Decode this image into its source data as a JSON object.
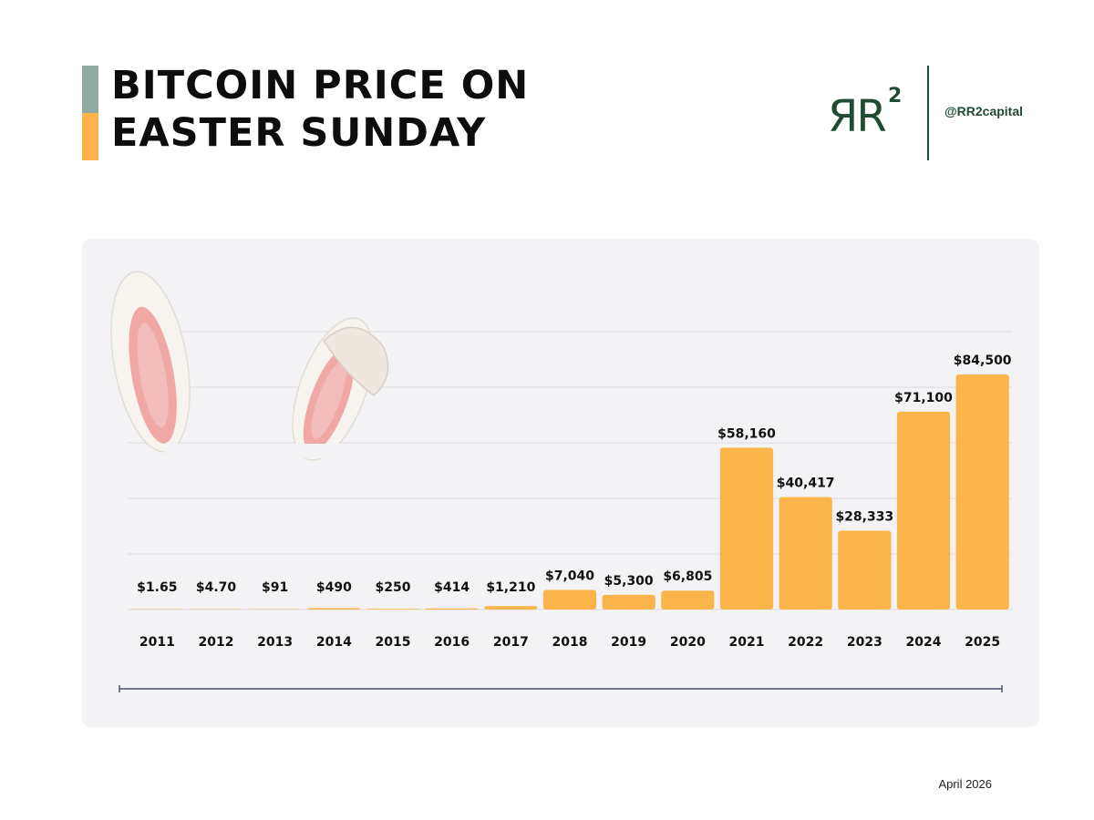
{
  "header": {
    "title_line1": "BITCOIN PRICE ON",
    "title_line2": "EASTER SUNDAY",
    "accent_colors": {
      "top": "#8fa9a3",
      "bottom": "#fbb44a"
    }
  },
  "brand": {
    "logo_text": "ЯR",
    "logo_superscript": "2",
    "handle": "@RR2capital",
    "color": "#1f4a33"
  },
  "footer": {
    "date": "April 2026"
  },
  "colors": {
    "bar": "#fbb44a",
    "panel": "#f3f3f5",
    "grid": "#dcdce2",
    "timeline": "#4a4e6e"
  },
  "chart_data": {
    "type": "bar",
    "title": "BITCOIN PRICE ON EASTER SUNDAY",
    "xlabel": "",
    "ylabel": "",
    "categories": [
      "2011",
      "2012",
      "2013",
      "2014",
      "2015",
      "2016",
      "2017",
      "2018",
      "2019",
      "2020",
      "2021",
      "2022",
      "2023",
      "2024",
      "2025"
    ],
    "values": [
      1.65,
      4.7,
      91,
      490,
      250,
      414,
      1210,
      7040,
      5300,
      6805,
      58160,
      40417,
      28333,
      71100,
      84500
    ],
    "labels": [
      "$1.65",
      "$4.70",
      "$91",
      "$490",
      "$250",
      "$414",
      "$1,210",
      "$7,040",
      "$5,300",
      "$6,805",
      "$58,160",
      "$40,417",
      "$28,333",
      "$71,100",
      "$84,500"
    ],
    "ylim": [
      0,
      84500
    ],
    "grid": true,
    "decoration": "bunny-ears"
  }
}
